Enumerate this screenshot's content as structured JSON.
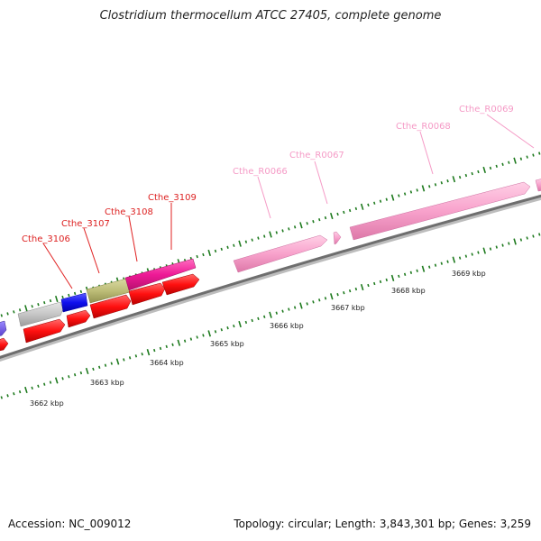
{
  "title": "Clostridium thermocellum ATCC 27405, complete genome",
  "footer": {
    "accession": "Accession: NC_009012",
    "topology": "Topology: circular; Length: 3,843,301 bp; Genes: 3,259"
  },
  "scale": {
    "unit": "kbp",
    "tick_labels": [
      "3662 kbp",
      "3663 kbp",
      "3664 kbp",
      "3665 kbp",
      "3666 kbp",
      "3667 kbp",
      "3668 kbp",
      "3669 kbp"
    ]
  },
  "genes": [
    {
      "label": "Cthe_3106",
      "color": "#dd2222"
    },
    {
      "label": "Cthe_3107",
      "color": "#dd2222"
    },
    {
      "label": "Cthe_3108",
      "color": "#dd2222"
    },
    {
      "label": "Cthe_3109",
      "color": "#dd2222"
    },
    {
      "label": "Cthe_R0066",
      "color": "#f59ac6"
    },
    {
      "label": "Cthe_R0067",
      "color": "#f59ac6"
    },
    {
      "label": "Cthe_R0068",
      "color": "#f59ac6"
    },
    {
      "label": "Cthe_R0069",
      "color": "#f59ac6"
    }
  ],
  "colors": {
    "cds": "#ff1a1a",
    "rna": "#f7a8cf",
    "backbone": "#777777",
    "ticks": "#1e7a1e"
  }
}
